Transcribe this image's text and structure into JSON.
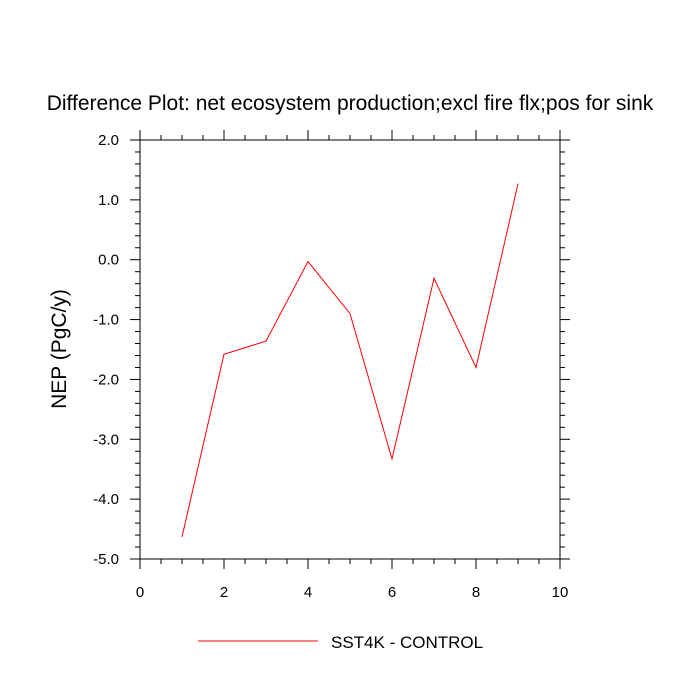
{
  "chart_data": {
    "type": "line",
    "title": "Difference Plot: net ecosystem production;excl fire flx;pos for sink",
    "xlabel": "",
    "ylabel": "NEP  (PgC/y)",
    "xlim": [
      0,
      10
    ],
    "ylim": [
      -5.0,
      2.0
    ],
    "x_ticks": [
      0,
      2,
      4,
      6,
      8,
      10
    ],
    "x_tick_labels": [
      "0",
      "2",
      "4",
      "6",
      "8",
      "10"
    ],
    "y_ticks": [
      2.0,
      1.0,
      0.0,
      -1.0,
      -2.0,
      -3.0,
      -4.0,
      -5.0
    ],
    "y_tick_labels": [
      "2.0",
      "1.0",
      "0.0",
      "-1.0",
      "-2.0",
      "-3.0",
      "-4.0",
      "-5.0"
    ],
    "grid": false,
    "legend_position": "bottom",
    "series": [
      {
        "name": "SST4K - CONTROL",
        "color": "#ff0000",
        "x": [
          1,
          2,
          3,
          4,
          5,
          6,
          7,
          8,
          9
        ],
        "y": [
          -4.63,
          -1.58,
          -1.36,
          -0.03,
          -0.9,
          -3.33,
          -0.31,
          -1.8,
          1.27
        ]
      }
    ]
  }
}
